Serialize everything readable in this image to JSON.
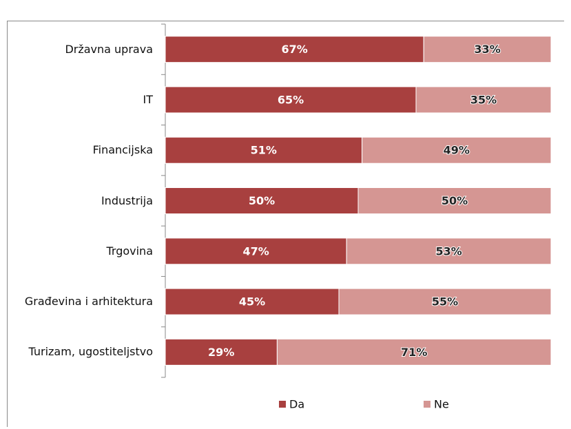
{
  "chart_data": {
    "type": "stacked-bar-horizontal",
    "categories": [
      "Državna uprava",
      "IT",
      "Financijska",
      "Industrija",
      "Trgovina",
      "Građevina i arhitektura",
      "Turizam, ugostiteljstvo"
    ],
    "xlim": [
      0,
      100
    ],
    "series": [
      {
        "name": "Da",
        "color": "#a8403f",
        "values": [
          67,
          65,
          51,
          50,
          47,
          45,
          29
        ],
        "value_labels": [
          "67%",
          "65%",
          "51%",
          "50%",
          "47%",
          "45%",
          "29%"
        ]
      },
      {
        "name": "Ne",
        "color": "#d59693",
        "values": [
          33,
          35,
          49,
          50,
          53,
          55,
          71
        ],
        "value_labels": [
          "33%",
          "35%",
          "49%",
          "50%",
          "53%",
          "55%",
          "71%"
        ]
      }
    ]
  }
}
